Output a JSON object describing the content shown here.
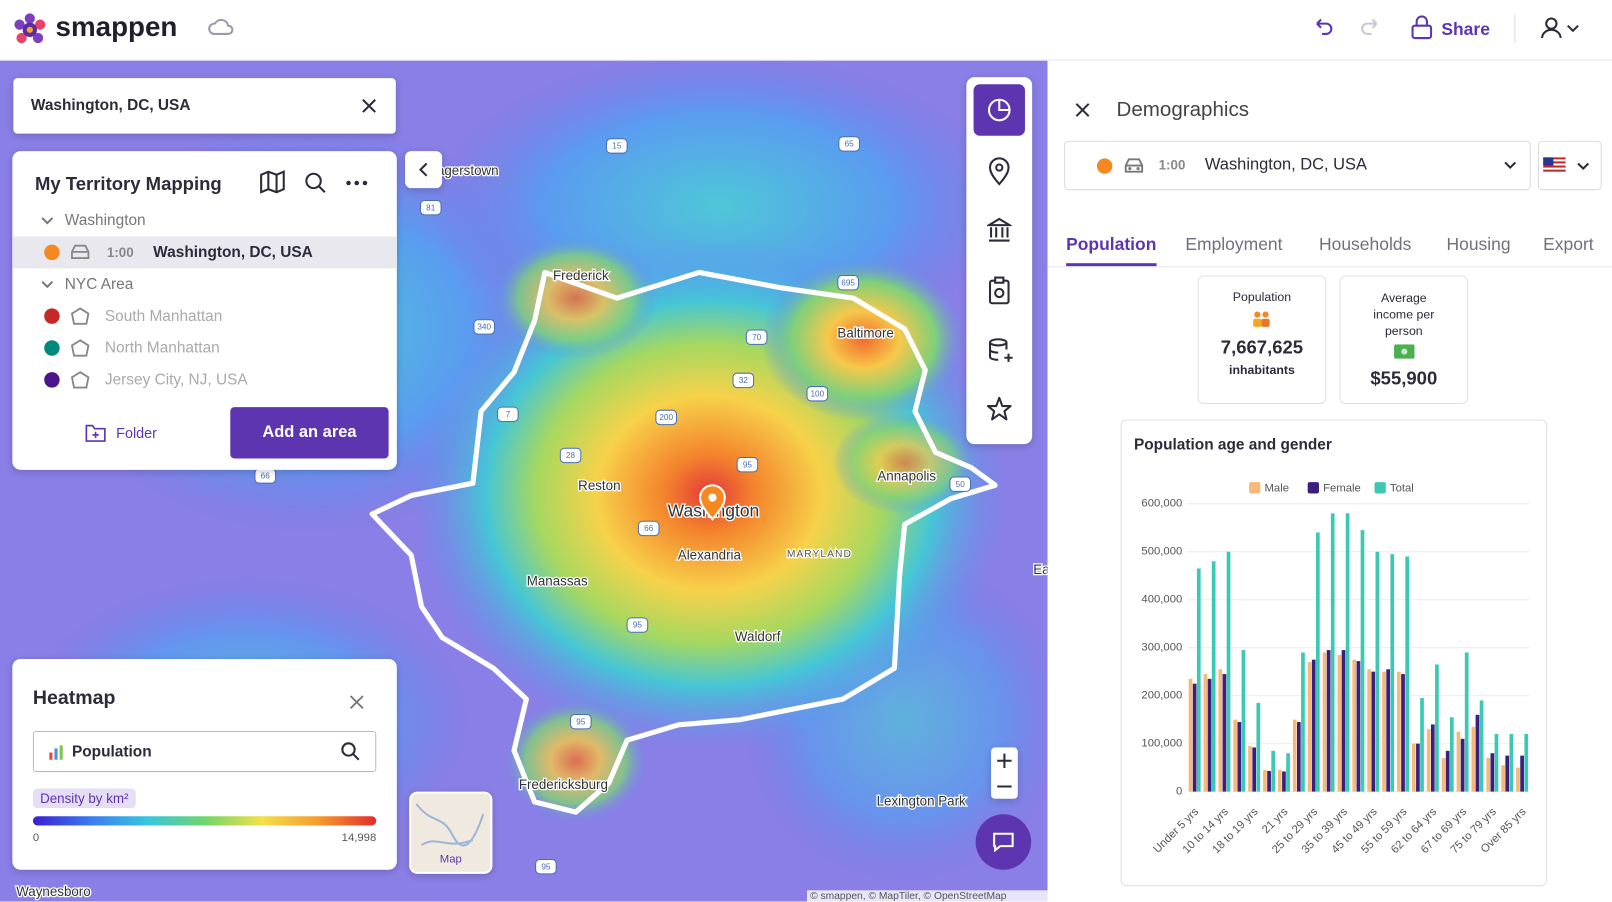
{
  "header": {
    "logo": "smappen",
    "share": "Share"
  },
  "search": {
    "value": "Washington, DC, USA"
  },
  "territory": {
    "title": "My Territory Mapping",
    "groups": [
      {
        "name": "Washington",
        "items": [
          {
            "color": "#f5891f",
            "time": "1:00",
            "name": "Washington, DC, USA"
          }
        ]
      },
      {
        "name": "NYC Area",
        "items": [
          {
            "color": "#c62828",
            "name": "South Manhattan"
          },
          {
            "color": "#00897b",
            "name": "North Manhattan"
          },
          {
            "color": "#4a148c",
            "name": "Jersey City, NJ, USA"
          }
        ]
      }
    ],
    "folder": "Folder",
    "add": "Add an area"
  },
  "heatmap": {
    "title": "Heatmap",
    "layer": "Population",
    "scale_title": "Density by km²",
    "min": "0",
    "max": "14,998"
  },
  "map": {
    "places": [
      "agerstown",
      "Frederick",
      "Baltimore",
      "Reston",
      "Washington",
      "Alexandria",
      "MARYLAND",
      "Annapolis",
      "Manassas",
      "Waldorf",
      "Fredericksburg",
      "Lexington Park",
      "Waynesboro",
      "Ea"
    ],
    "shields": [
      "15",
      "81",
      "65",
      "340",
      "70",
      "32",
      "100",
      "7",
      "200",
      "28",
      "95",
      "66",
      "695",
      "95",
      "95",
      "95",
      "66",
      "50"
    ],
    "thumbnail": "Map",
    "attribution": "© smappen, © MapTiler, © OpenStreetMap"
  },
  "demographics": {
    "title": "Demographics",
    "selector": {
      "color": "#f5891f",
      "time": "1:00",
      "place": "Washington, DC, USA"
    },
    "tabs": [
      "Population",
      "Employment",
      "Households",
      "Housing",
      "Export"
    ],
    "cards": [
      {
        "label": "Population",
        "value": "7,667,625",
        "unit": "inhabitants"
      },
      {
        "label": "Average income per person",
        "value": "$55,900"
      }
    ]
  },
  "chart_data": {
    "type": "bar",
    "title": "Population age and gender",
    "categories": [
      "Under 5 yrs",
      null,
      "10 to 14 yrs",
      null,
      "18 to 19 yrs",
      null,
      "21 yrs",
      null,
      "25 to 29 yrs",
      null,
      "35 to 39 yrs",
      null,
      "45 to 49 yrs",
      null,
      "55 to 59 yrs",
      null,
      "62 to 64 yrs",
      null,
      "67 to 69 yrs",
      null,
      "75 to 79 yrs",
      null,
      "Over 85 yrs"
    ],
    "series": [
      {
        "name": "Male",
        "color": "#f5b97a",
        "values": [
          235000,
          245000,
          255000,
          150000,
          95000,
          45000,
          45000,
          150000,
          270000,
          290000,
          285000,
          275000,
          255000,
          250000,
          250000,
          100000,
          130000,
          70000,
          125000,
          135000,
          70000,
          55000,
          50000
        ]
      },
      {
        "name": "Female",
        "color": "#3b1f80",
        "values": [
          225000,
          235000,
          245000,
          145000,
          92000,
          43000,
          42000,
          145000,
          275000,
          295000,
          295000,
          272000,
          250000,
          255000,
          245000,
          100000,
          140000,
          85000,
          110000,
          160000,
          80000,
          75000,
          75000
        ]
      },
      {
        "name": "Total",
        "color": "#3cc9b4",
        "values": [
          465000,
          480000,
          500000,
          295000,
          185000,
          85000,
          80000,
          290000,
          540000,
          580000,
          580000,
          545000,
          500000,
          495000,
          490000,
          195000,
          265000,
          155000,
          290000,
          190000,
          120000,
          120000,
          120000
        ]
      }
    ],
    "ylim": [
      0,
      600000
    ],
    "yticks": [
      0,
      {
        "value": 100000,
        "label": "100,000"
      },
      {
        "value": 200000,
        "label": "200,000"
      },
      {
        "value": 300000,
        "label": "300,000"
      },
      {
        "value": 400000,
        "label": "400,000"
      },
      {
        "value": 500000,
        "label": "500,000"
      },
      {
        "value": 600000,
        "label": "600,000"
      }
    ],
    "grid": true,
    "legend": "top"
  }
}
